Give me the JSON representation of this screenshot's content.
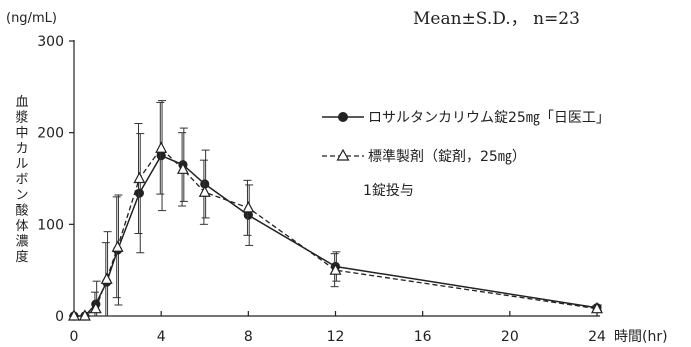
{
  "chart_data": {
    "type": "line",
    "y_unit": "(ng/mL)",
    "ylabel": "血漿中カルボン酸体濃度",
    "xlabel": "時間(hr)",
    "stats_note": "Mean±S.D.， n=23",
    "dose_note": "1錠投与",
    "x_ticks": [
      0,
      4,
      8,
      12,
      16,
      20,
      24
    ],
    "x_tick_labels": [
      "0",
      "4",
      "8",
      "12",
      "16",
      "20",
      "24"
    ],
    "y_ticks": [
      0,
      100,
      200,
      300
    ],
    "y_tick_labels": [
      "0",
      "100",
      "200",
      "300"
    ],
    "xlim": [
      0,
      24
    ],
    "ylim": [
      0,
      300
    ],
    "grid": false,
    "legend_position": "right-center",
    "series": [
      {
        "name": "ロサルタンカリウム錠25㎎「日医工」",
        "marker": "filled-circle",
        "line": "solid",
        "x": [
          0,
          0.5,
          1,
          1.5,
          2,
          3,
          4,
          5,
          6,
          8,
          12,
          24
        ],
        "y": [
          0,
          0,
          13,
          37,
          72,
          134,
          175,
          165,
          144,
          110,
          54,
          9
        ],
        "sd": [
          0,
          0,
          25,
          55,
          60,
          65,
          60,
          40,
          37,
          33,
          16,
          3
        ]
      },
      {
        "name": "標準製剤（錠剤，25㎎）",
        "marker": "open-triangle",
        "line": "dashed",
        "x": [
          0,
          0.5,
          1,
          1.5,
          2,
          3,
          4,
          5,
          6,
          8,
          12,
          24
        ],
        "y": [
          0,
          0,
          8,
          40,
          75,
          150,
          183,
          160,
          135,
          118,
          50,
          8
        ],
        "sd": [
          0,
          0,
          18,
          40,
          55,
          60,
          50,
          40,
          35,
          30,
          18,
          3
        ]
      }
    ]
  }
}
